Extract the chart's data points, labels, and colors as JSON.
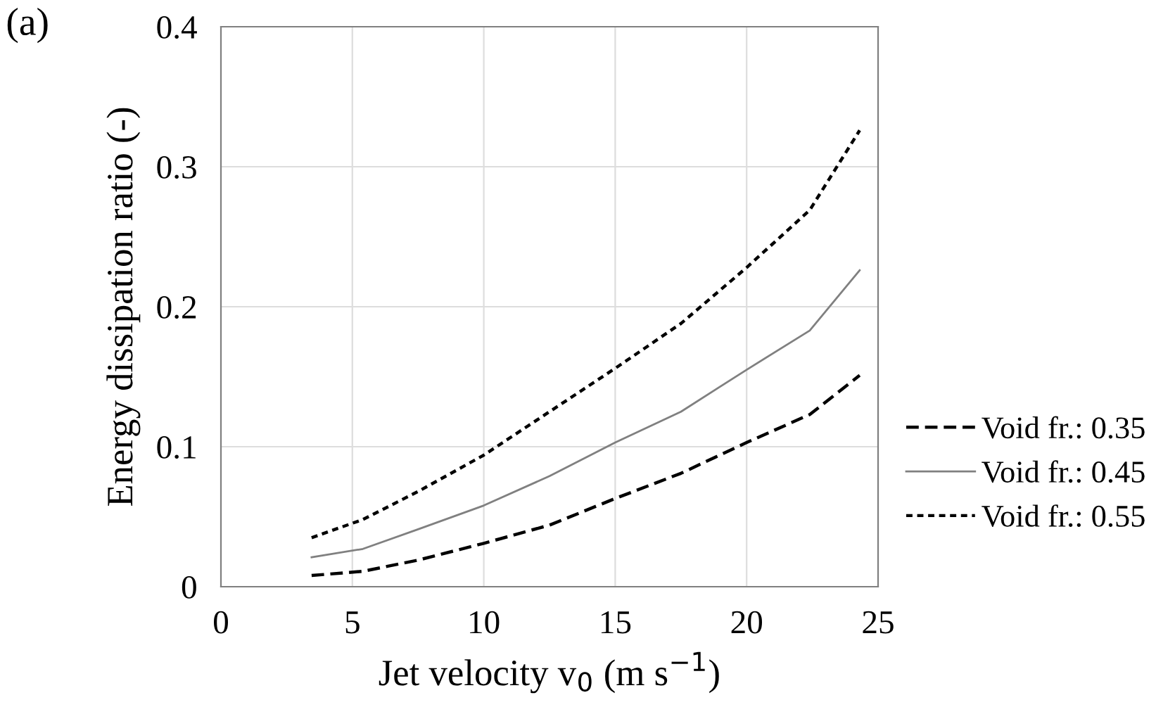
{
  "chart_data": {
    "type": "line",
    "annotations": [
      "(a)"
    ],
    "xlabel": "Jet velocity v$_{0}$ (m s$^{−1}$)",
    "ylabel": "Energy dissipation ratio (-)",
    "x": [
      3.45,
      5.4,
      7.5,
      10,
      12.5,
      15,
      17.5,
      20,
      22.4,
      24.3
    ],
    "series": [
      {
        "name": "Void fr.: 0.35",
        "color": "#000000",
        "line_style": "dashed",
        "values": [
          0.008,
          0.011,
          0.019,
          0.031,
          0.044,
          0.063,
          0.081,
          0.103,
          0.123,
          0.151
        ]
      },
      {
        "name": "Void fr.: 0.45",
        "color": "#808080",
        "line_style": "solid",
        "values": [
          0.021,
          0.027,
          0.041,
          0.058,
          0.079,
          0.103,
          0.125,
          0.155,
          0.183,
          0.226
        ]
      },
      {
        "name": "Void fr.: 0.55",
        "color": "#000000",
        "line_style": "dotted",
        "values": [
          0.035,
          0.048,
          0.068,
          0.094,
          0.125,
          0.156,
          0.188,
          0.228,
          0.269,
          0.326
        ]
      }
    ],
    "xlim": [
      0,
      25
    ],
    "xticks": [
      0,
      5,
      10,
      15,
      20,
      25
    ],
    "ylim": [
      0,
      0.4
    ],
    "yticks": [
      0,
      0.1,
      0.2,
      0.3,
      0.4
    ],
    "grid": true,
    "legend": "right",
    "marker": "none"
  }
}
